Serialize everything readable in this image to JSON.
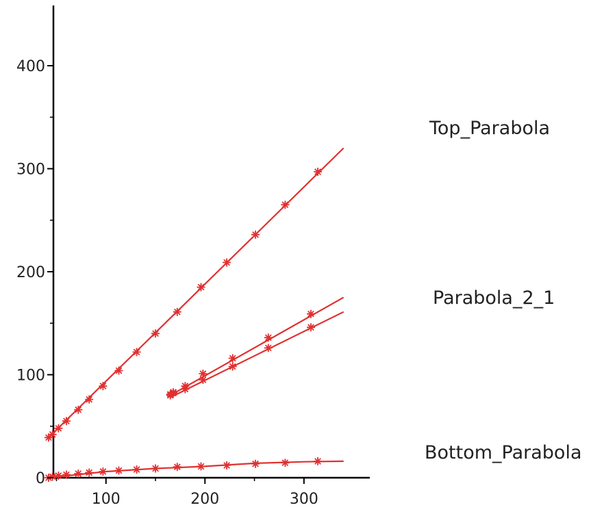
{
  "chart_data": {
    "type": "line",
    "title": "",
    "xlabel": "",
    "ylabel": "",
    "xlim": [
      40,
      340
    ],
    "ylim": [
      0,
      455
    ],
    "x_ticks": [
      100,
      200,
      300
    ],
    "y_ticks": [
      0,
      100,
      200,
      300,
      400
    ],
    "grid": false,
    "legend": "none",
    "line_color": "#e03030",
    "marker": "star",
    "annotations": [
      {
        "text": "Top_Parabola"
      },
      {
        "text": "Parabola_2_1"
      },
      {
        "text": "Bottom_Parabola"
      }
    ],
    "series": [
      {
        "line": [
          [
            42,
            39
          ],
          [
            340,
            320
          ]
        ],
        "points": [
          [
            42,
            39
          ],
          [
            46,
            42
          ],
          [
            52,
            48
          ],
          [
            60,
            55
          ],
          [
            72,
            66
          ],
          [
            83,
            76
          ],
          [
            97,
            89
          ],
          [
            113,
            104
          ],
          [
            131,
            122
          ],
          [
            150,
            140
          ],
          [
            172,
            161
          ],
          [
            196,
            185
          ],
          [
            222,
            209
          ],
          [
            251,
            236
          ],
          [
            281,
            265
          ],
          [
            314,
            297
          ]
        ]
      },
      {
        "line": [
          [
            165,
            80
          ],
          [
            340,
            175
          ]
        ],
        "points": [
          [
            165,
            81
          ],
          [
            168,
            83
          ],
          [
            180,
            89
          ],
          [
            198,
            101
          ],
          [
            228,
            116
          ],
          [
            264,
            136
          ],
          [
            307,
            159
          ]
        ]
      },
      {
        "line": [
          [
            165,
            78
          ],
          [
            340,
            161
          ]
        ],
        "points": [
          [
            165,
            80
          ],
          [
            168,
            82
          ],
          [
            180,
            86
          ],
          [
            198,
            95
          ],
          [
            228,
            108
          ],
          [
            264,
            126
          ],
          [
            307,
            146
          ]
        ]
      },
      {
        "line": [
          [
            42,
            0
          ],
          [
            100,
            6
          ],
          [
            150,
            9
          ],
          [
            200,
            11
          ],
          [
            250,
            14
          ],
          [
            300,
            15.5
          ],
          [
            340,
            16
          ]
        ],
        "points": [
          [
            42,
            0
          ],
          [
            46,
            1
          ],
          [
            52,
            2
          ],
          [
            60,
            3
          ],
          [
            72,
            4
          ],
          [
            83,
            5
          ],
          [
            97,
            6
          ],
          [
            113,
            7
          ],
          [
            131,
            8
          ],
          [
            150,
            9
          ],
          [
            172,
            10.5
          ],
          [
            196,
            11
          ],
          [
            222,
            12
          ],
          [
            251,
            13.5
          ],
          [
            281,
            14.5
          ],
          [
            314,
            16
          ]
        ]
      }
    ]
  }
}
